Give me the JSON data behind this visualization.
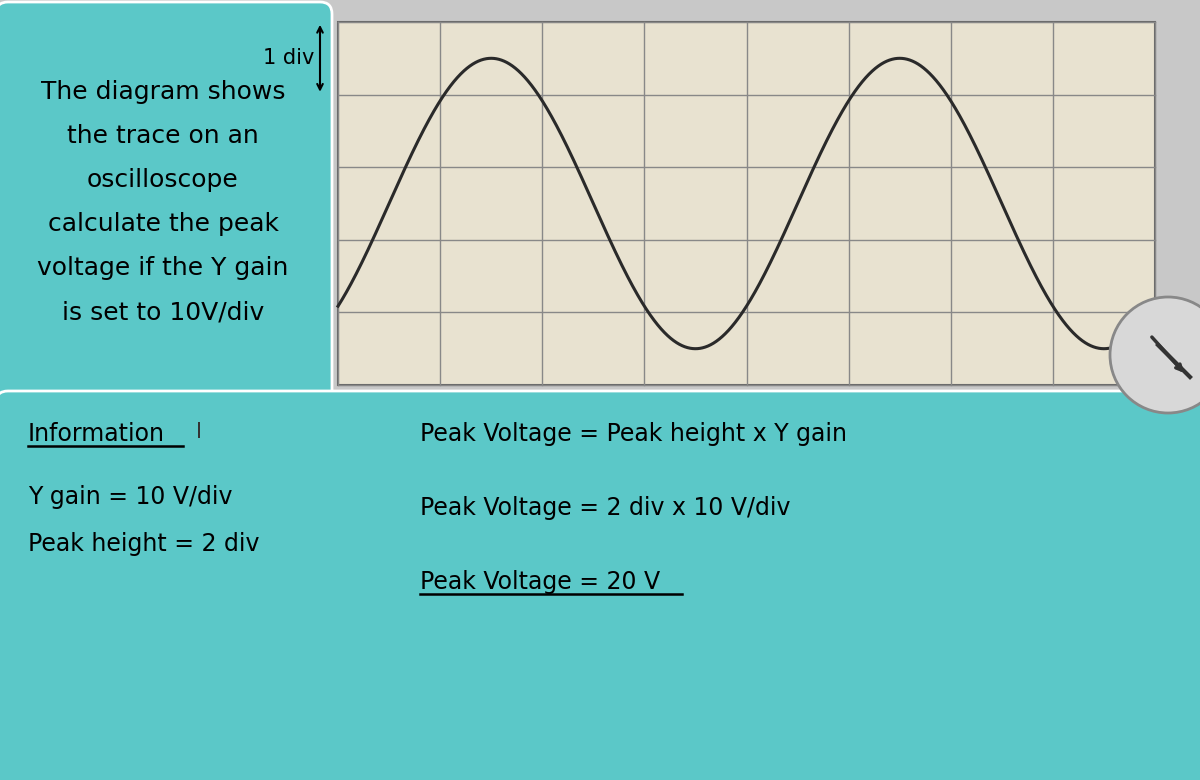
{
  "bg_color": "#c8c8c8",
  "top_left_box_color": "#5bc8c8",
  "bottom_box_color": "#5bc8c8",
  "oscilloscope_bg": "#e8e2d0",
  "grid_color": "#888888",
  "wave_color": "#2a2a2a",
  "top_left_text_lines": [
    "The diagram shows",
    "the trace on an",
    "oscilloscope",
    "calculate the peak",
    "voltage if the Y gain",
    "is set to 10V/div"
  ],
  "label_1div_horiz": "1 div",
  "label_1div_vert": "1 div",
  "info_title": "Information",
  "info_line1": "Y gain = 10 V/div",
  "info_line2": "Peak height = 2 div",
  "formula_line1": "Peak Voltage = Peak height x Y gain",
  "formula_line2": "Peak Voltage = 2 div x 10 V/div",
  "formula_line3": "Peak Voltage = 20 V",
  "grid_cols": 8,
  "grid_rows": 5,
  "title_fontsize": 18,
  "label_fontsize": 15,
  "info_fontsize": 17
}
